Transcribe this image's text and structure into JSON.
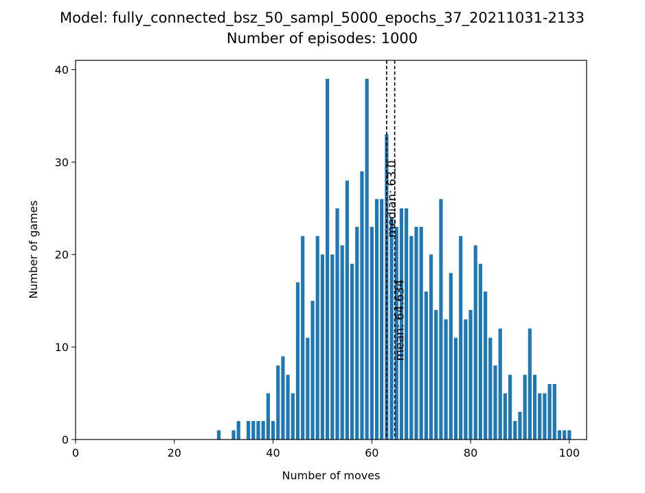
{
  "chart_data": {
    "type": "bar",
    "title": "Model: fully_connected_bsz_50_sampl_5000_epochs_37_20211031-2133",
    "subtitle": "Number of episodes: 1000",
    "xlabel": "Number of moves",
    "ylabel": "Number of games",
    "xlim": [
      0,
      103.5
    ],
    "ylim": [
      0,
      41
    ],
    "xticks": [
      0,
      20,
      40,
      60,
      80,
      100
    ],
    "yticks": [
      0,
      10,
      20,
      30,
      40
    ],
    "bar_color": "#1f77b4",
    "grid": false,
    "x": [
      29,
      32,
      33,
      35,
      36,
      37,
      38,
      39,
      40,
      41,
      42,
      43,
      44,
      45,
      46,
      47,
      48,
      49,
      50,
      51,
      52,
      53,
      54,
      55,
      56,
      57,
      58,
      59,
      60,
      61,
      62,
      63,
      64,
      65,
      66,
      67,
      68,
      69,
      70,
      71,
      72,
      73,
      74,
      75,
      76,
      77,
      78,
      79,
      80,
      81,
      82,
      83,
      84,
      85,
      86,
      87,
      88,
      89,
      90,
      91,
      92,
      93,
      94,
      95,
      96,
      97,
      98,
      99,
      100
    ],
    "values": [
      1,
      1,
      2,
      2,
      2,
      2,
      2,
      5,
      2,
      8,
      9,
      7,
      5,
      17,
      22,
      11,
      15,
      22,
      20,
      39,
      20,
      25,
      21,
      28,
      19,
      23,
      29,
      39,
      23,
      26,
      26,
      33,
      24,
      23,
      25,
      25,
      22,
      23,
      23,
      16,
      20,
      14,
      26,
      13,
      18,
      11,
      22,
      13,
      14,
      21,
      19,
      16,
      11,
      8,
      12,
      5,
      7,
      2,
      3,
      7,
      12,
      7,
      5,
      5,
      6,
      6,
      1,
      1,
      1
    ],
    "lines": [
      {
        "x": 63.0,
        "label": "median: 63.0",
        "style": "dashed",
        "color": "#000000"
      },
      {
        "x": 64.634,
        "label": "mean: 64.634",
        "style": "dashed",
        "color": "#000000"
      }
    ]
  }
}
